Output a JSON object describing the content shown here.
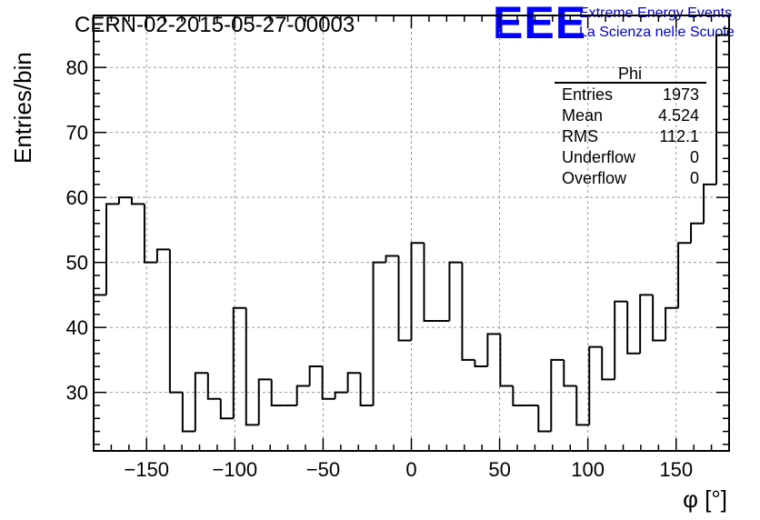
{
  "chart_data": {
    "type": "histogram",
    "title": "CERN-02-2015-05-27-00003",
    "xlabel": "φ [°]",
    "ylabel": "Entries/bin",
    "xlim": [
      -180,
      180
    ],
    "ylim": [
      21,
      88
    ],
    "bin_width": 7.2,
    "bin_edges_start": -180,
    "counts": [
      45,
      59,
      60,
      59,
      50,
      52,
      30,
      24,
      33,
      29,
      26,
      43,
      25,
      32,
      28,
      28,
      31,
      34,
      29,
      30,
      33,
      28,
      50,
      51,
      38,
      53,
      41,
      41,
      50,
      35,
      34,
      39,
      31,
      28,
      28,
      24,
      35,
      31,
      25,
      37,
      32,
      44,
      36,
      45,
      38,
      43,
      53,
      56,
      62,
      85
    ],
    "x_ticks": [
      -150,
      -100,
      -50,
      0,
      50,
      100,
      150
    ],
    "x_tick_labels": [
      "−150",
      "−100",
      "−50",
      "0",
      "50",
      "100",
      "150"
    ],
    "y_ticks": [
      30,
      40,
      50,
      60,
      70,
      80
    ],
    "y_tick_labels": [
      "30",
      "40",
      "50",
      "60",
      "70",
      "80"
    ],
    "grid": true,
    "color": "#000000"
  },
  "stats_box": {
    "name": "Phi",
    "rows": [
      {
        "label": "Entries",
        "value": "1973"
      },
      {
        "label": "Mean",
        "value": "4.524"
      },
      {
        "label": "RMS",
        "value": "112.1"
      },
      {
        "label": "Underflow",
        "value": "0"
      },
      {
        "label": "Overflow",
        "value": "0"
      }
    ]
  },
  "logo": {
    "mark": "EEE",
    "line1": "Extreme Energy Events",
    "line2": "La Scienza nelle Scuole",
    "color": "#0000ff"
  }
}
